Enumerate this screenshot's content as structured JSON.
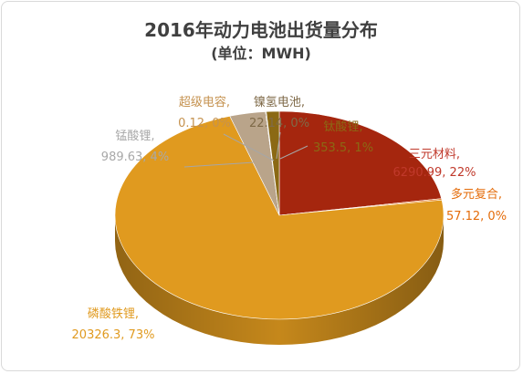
{
  "chart_data": {
    "type": "pie",
    "title": "2016年动力电池出货量分布",
    "subtitle": "(单位：MWH)",
    "slices": [
      {
        "name": "三元材料",
        "value": 6290.99,
        "percent": "22%",
        "color": "#a5260e",
        "label_color": "#c0392b",
        "value_text": "6290.99, 22%"
      },
      {
        "name": "多元复合",
        "value": 57.12,
        "percent": "0%",
        "color": "#e46c0a",
        "label_color": "#e46c0a",
        "value_text": "57.12, 0%"
      },
      {
        "name": "磷酸铁锂",
        "value": 20326.3,
        "percent": "73%",
        "color": "#e09a1f",
        "label_color": "#e09a1f",
        "value_text": "20326.3, 73%"
      },
      {
        "name": "锰酸锂",
        "value": 989.63,
        "percent": "4%",
        "color": "#b9a48a",
        "label_color": "#a8a8a8",
        "value_text": "989.63, 4%"
      },
      {
        "name": "超级电容",
        "value": 0.12,
        "percent": "0%",
        "color": "#b8a07a",
        "label_color": "#c5924f",
        "value_text": "0.12, 0%"
      },
      {
        "name": "镍氢电池",
        "value": 22.14,
        "percent": "0%",
        "color": "#7f6a48",
        "label_color": "#7f6a48",
        "value_text": "22.14, 0%"
      },
      {
        "name": "钛酸锂",
        "value": 353.5,
        "percent": "1%",
        "color": "#8b6914",
        "label_color": "#8b6914",
        "value_text": "353.5, 1%"
      }
    ]
  }
}
